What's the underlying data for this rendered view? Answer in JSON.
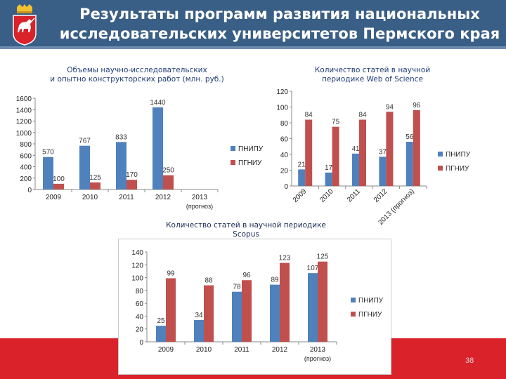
{
  "title": {
    "line1": "Результаты программ развития национальных",
    "line2": "исследовательских университетов Пермского края"
  },
  "page_number": "38",
  "colors": {
    "header": "#3a5f86",
    "footer": "#d9222a",
    "series_pniu": "#4f81bd",
    "series_pgniu": "#c0504d"
  },
  "chart_data": [
    {
      "type": "bar",
      "title_line1": "Объемы научно-исследовательских",
      "title_line2": "и опытно конструкторских работ (млн. руб.)",
      "categories": [
        "2009",
        "2010",
        "2011",
        "2012",
        "2013"
      ],
      "category_sublabels": [
        "",
        "",
        "",
        "",
        "(прогноз)"
      ],
      "series": [
        {
          "name": "ПНИПУ",
          "values": [
            570,
            767,
            833,
            1440,
            null
          ]
        },
        {
          "name": "ПГНИУ",
          "values": [
            100,
            125,
            170,
            250,
            null
          ]
        }
      ],
      "yticks": [
        "0",
        "200",
        "400",
        "600",
        "800",
        "1000",
        "1200",
        "1400",
        "1600"
      ],
      "ylim": [
        0,
        1600
      ],
      "legend": "right",
      "grid": false
    },
    {
      "type": "bar",
      "title_line1": "Количество статей в научной",
      "title_line2": "периодике Web of Science",
      "categories": [
        "2009",
        "2010",
        "2011",
        "2012",
        "2013 (прогноз)"
      ],
      "series": [
        {
          "name": "ПНИПУ",
          "values": [
            21,
            17,
            41,
            37,
            56
          ]
        },
        {
          "name": "ПГНИУ",
          "values": [
            84,
            75,
            84,
            94,
            96
          ]
        }
      ],
      "yticks": [
        "0",
        "20",
        "40",
        "60",
        "80",
        "100",
        "120"
      ],
      "ylim": [
        0,
        120
      ],
      "legend": "right",
      "grid": false
    },
    {
      "type": "bar",
      "title_line1": "Количество статей в научной периодике",
      "title_line2": "Scopus",
      "categories": [
        "2009",
        "2010",
        "2011",
        "2012",
        "2013"
      ],
      "category_sublabels": [
        "",
        "",
        "",
        "",
        "(прогноз)"
      ],
      "series": [
        {
          "name": "ПНИПУ",
          "values": [
            25,
            34,
            78,
            89,
            107
          ]
        },
        {
          "name": "ПГНИУ",
          "values": [
            99,
            88,
            96,
            123,
            125
          ]
        }
      ],
      "yticks": [
        "0",
        "20",
        "40",
        "60",
        "80",
        "100",
        "120",
        "140"
      ],
      "ylim": [
        0,
        140
      ],
      "legend": "right",
      "grid": false
    }
  ]
}
